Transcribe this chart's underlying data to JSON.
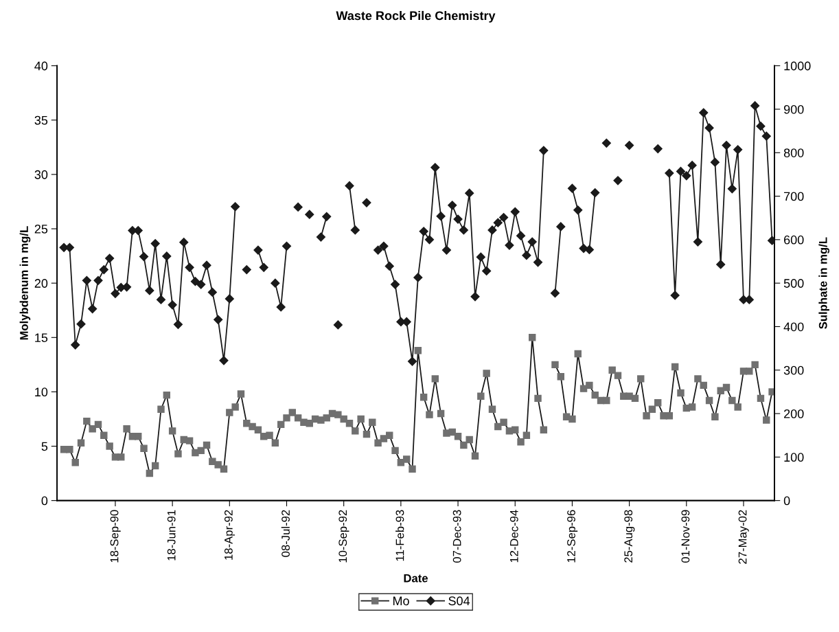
{
  "chart_data": {
    "type": "line",
    "title": "Waste Rock Pile Chemistry",
    "xlabel": "Date",
    "ylabel": "Molybdenum in mg/L",
    "y2label": "Sulphate in mg/L",
    "categories": [
      null,
      null,
      null,
      null,
      null,
      null,
      null,
      null,
      null,
      "18-Sep-90",
      null,
      null,
      null,
      null,
      null,
      null,
      null,
      null,
      null,
      "18-Jun-91",
      null,
      null,
      null,
      null,
      null,
      null,
      null,
      null,
      null,
      "18-Apr-92",
      null,
      null,
      null,
      null,
      null,
      null,
      null,
      null,
      null,
      "08-Jul-92",
      null,
      null,
      null,
      null,
      null,
      null,
      null,
      null,
      null,
      "10-Sep-92",
      null,
      null,
      null,
      null,
      null,
      null,
      null,
      null,
      null,
      "11-Feb-93",
      null,
      null,
      null,
      null,
      null,
      null,
      null,
      null,
      null,
      "07-Dec-93",
      null,
      null,
      null,
      null,
      null,
      null,
      null,
      null,
      null,
      "12-Dec-94",
      null,
      null,
      null,
      null,
      null,
      null,
      null,
      null,
      null,
      "12-Sep-96",
      null,
      null,
      null,
      null,
      null,
      null,
      null,
      null,
      null,
      "25-Aug-98",
      null,
      null,
      null,
      null,
      null,
      null,
      null,
      null,
      null,
      "01-Nov-99",
      null,
      null,
      null,
      null,
      null,
      null,
      null,
      null,
      null,
      "27-May-02",
      null,
      null,
      null,
      null,
      null
    ],
    "series": [
      {
        "name": "Mo",
        "color": "#707070",
        "marker": "square",
        "values": [
          4.7,
          4.7,
          3.5,
          5.3,
          7.3,
          6.6,
          7.0,
          6.0,
          5.0,
          4.0,
          4.0,
          6.6,
          5.9,
          5.9,
          4.8,
          2.5,
          3.2,
          8.4,
          9.7,
          6.4,
          4.3,
          5.6,
          5.5,
          4.4,
          4.6,
          5.1,
          3.6,
          3.3,
          2.9,
          8.1,
          8.6,
          9.8,
          7.1,
          6.8,
          6.5,
          5.9,
          6.0,
          5.3,
          7.0,
          7.6,
          8.1,
          7.6,
          7.2,
          7.1,
          7.5,
          7.4,
          7.6,
          8.0,
          7.9,
          7.5,
          7.1,
          6.4,
          7.5,
          6.1,
          7.2,
          5.3,
          5.7,
          6.0,
          4.6,
          3.5,
          3.8,
          2.9,
          13.8,
          9.5,
          7.9,
          11.2,
          8.0,
          6.2,
          6.3,
          5.9,
          5.1,
          5.6,
          4.1,
          9.6,
          11.7,
          8.4,
          6.8,
          7.2,
          6.4,
          6.5,
          5.4,
          6.0,
          15.0,
          9.4,
          6.5,
          null,
          12.5,
          11.4,
          7.7,
          7.5,
          13.5,
          10.3,
          10.6,
          9.7,
          9.2,
          9.2,
          12.0,
          11.5,
          9.6,
          9.6,
          9.4,
          11.2,
          7.8,
          8.4,
          9.0,
          7.8,
          7.8,
          12.3,
          9.9,
          8.5,
          8.6,
          11.2,
          10.6,
          9.2,
          7.7,
          10.1,
          10.4,
          9.2,
          8.6,
          11.9,
          11.9,
          12.5,
          9.4,
          7.4,
          10.0
        ]
      },
      {
        "name": "S04",
        "color": "#1a1a1a",
        "marker": "diamond",
        "axis": "y2",
        "values": [
          582,
          582,
          358,
          406,
          506,
          441,
          506,
          531,
          557,
          476,
          490,
          491,
          621,
          621,
          561,
          483,
          591,
          462,
          562,
          450,
          405,
          594,
          536,
          504,
          497,
          541,
          479,
          416,
          322,
          464,
          676,
          null,
          531,
          null,
          576,
          536,
          null,
          500,
          445,
          585,
          null,
          675,
          null,
          658,
          null,
          606,
          653,
          null,
          404,
          null,
          724,
          622,
          null,
          685,
          null,
          576,
          585,
          539,
          497,
          411,
          411,
          320,
          513,
          619,
          600,
          766,
          654,
          576,
          679,
          647,
          622,
          707,
          469,
          560,
          528,
          622,
          639,
          651,
          587,
          664,
          609,
          564,
          595,
          548,
          805,
          null,
          477,
          630,
          null,
          718,
          668,
          580,
          577,
          708,
          null,
          822,
          null,
          736,
          null,
          817,
          null,
          null,
          null,
          null,
          809,
          null,
          753,
          472,
          757,
          747,
          771,
          595,
          892,
          857,
          778,
          543,
          817,
          717,
          807,
          462,
          462,
          908,
          861,
          838,
          598
        ]
      }
    ],
    "ylim": [
      0,
      40
    ],
    "yticks": [
      0,
      5,
      10,
      15,
      20,
      25,
      30,
      35,
      40
    ],
    "y2lim": [
      0,
      1000
    ],
    "y2ticks": [
      0,
      100,
      200,
      300,
      400,
      500,
      600,
      700,
      800,
      900,
      1000
    ],
    "legend": "bottom",
    "line_style": "solid"
  }
}
